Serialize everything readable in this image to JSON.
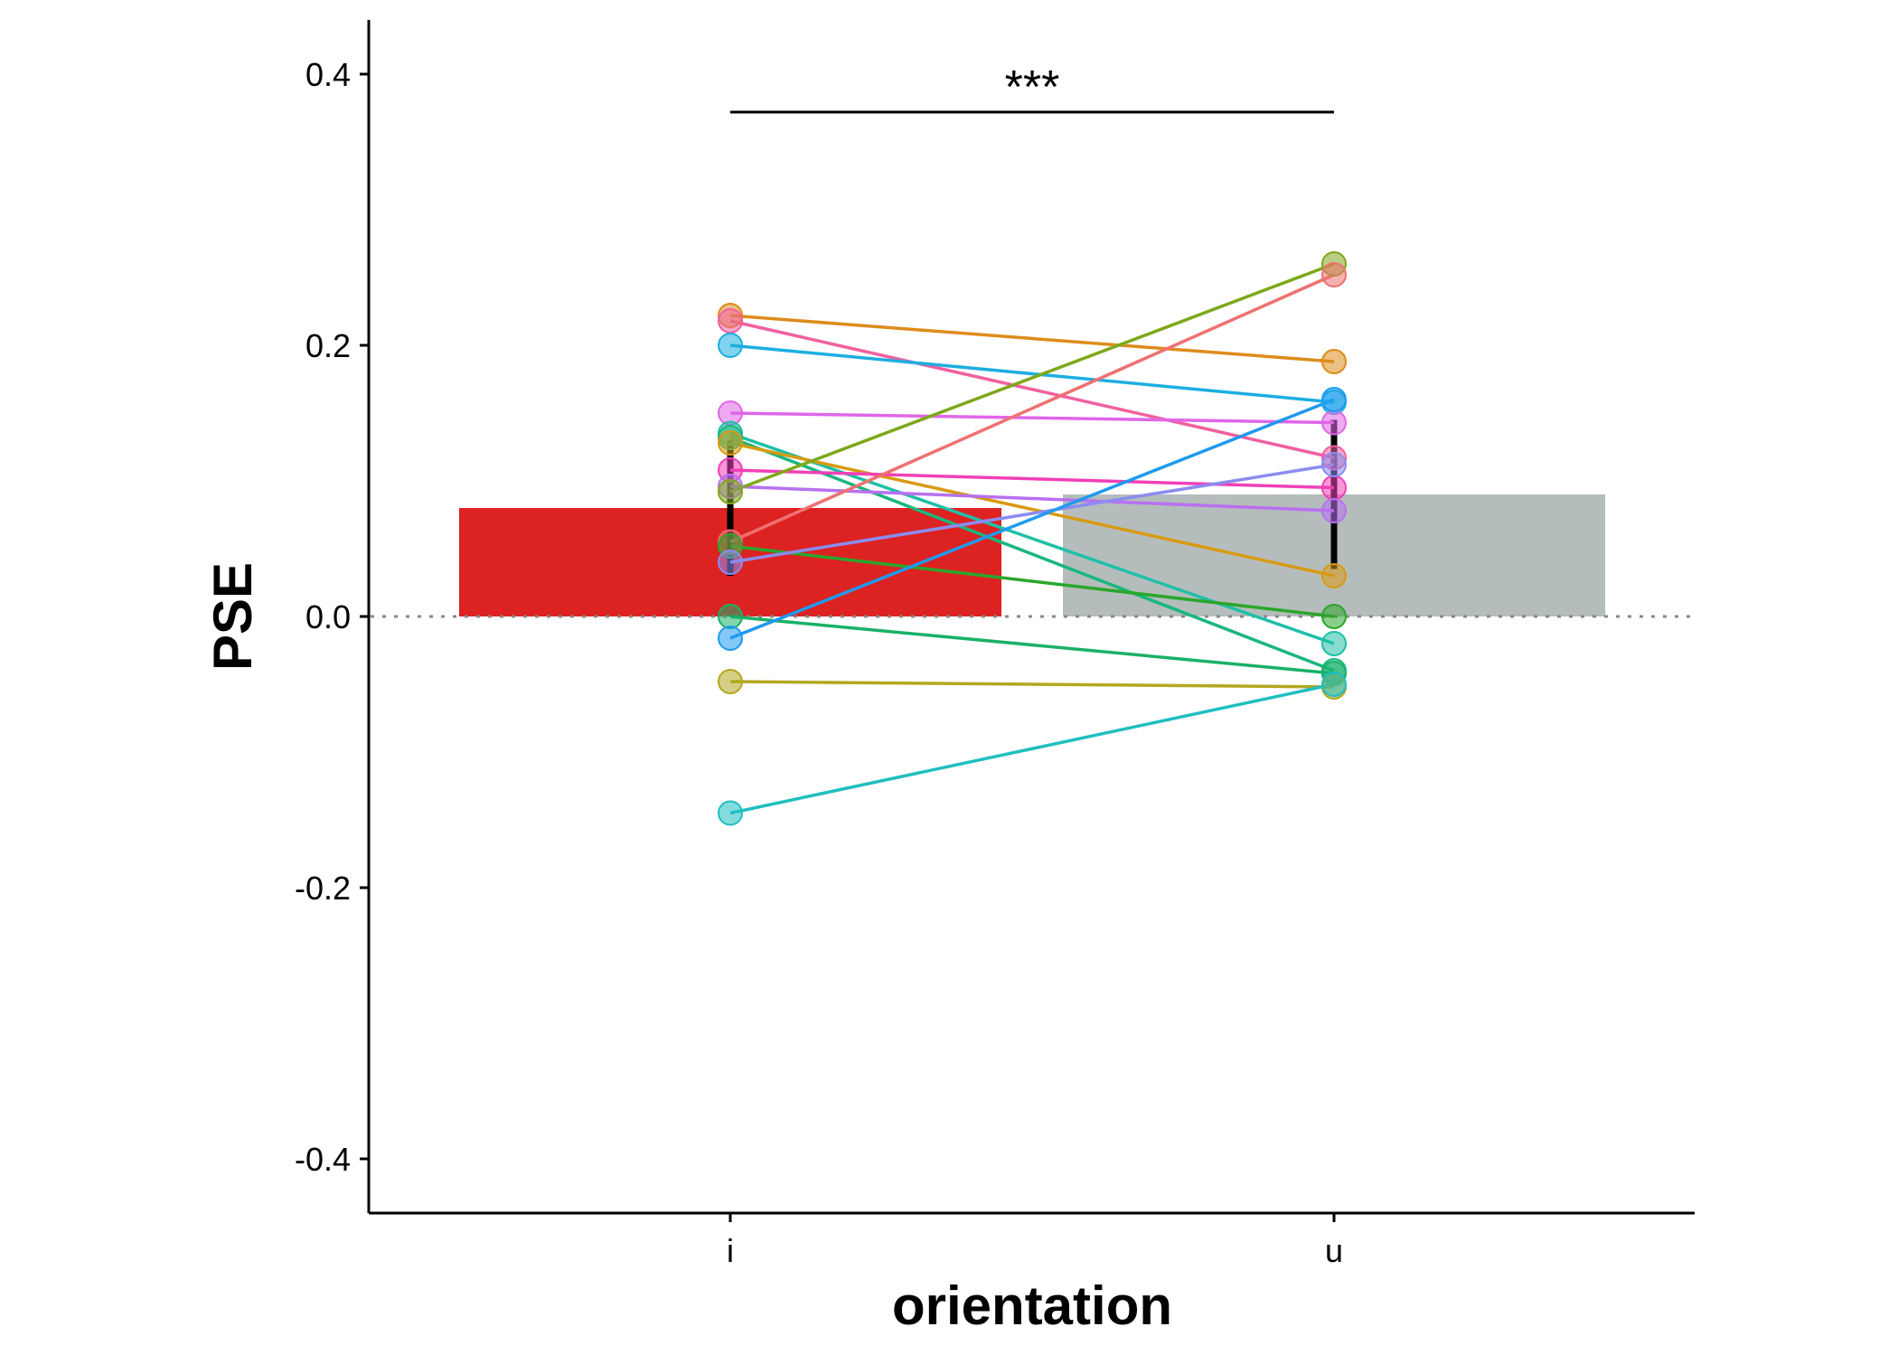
{
  "chart_data": {
    "type": "bar",
    "categories": [
      "i",
      "u"
    ],
    "bars": [
      {
        "category": "i",
        "value": 0.08,
        "color": "#DD2222",
        "error": [
          0.03,
          0.13
        ]
      },
      {
        "category": "u",
        "value": 0.09,
        "color": "#B5BDBC",
        "error": [
          0.035,
          0.145
        ]
      }
    ],
    "xlabel": "orientation",
    "ylabel": "PSE",
    "ylim": [
      -0.44,
      0.44
    ],
    "yticks": [
      0.4,
      0.2,
      0.0,
      -0.2,
      -0.4
    ],
    "ytick_labels": [
      "0.4",
      "0.2",
      "0.0",
      "-0.2",
      "-0.4"
    ],
    "reference_line": 0,
    "significance": {
      "label": "***",
      "y": 0.372,
      "from": "i",
      "to": "u"
    },
    "subjects": [
      {
        "i": 0.222,
        "u": 0.188,
        "color": "#DD8C1A"
      },
      {
        "i": 0.218,
        "u": 0.117,
        "color": "#F060A0"
      },
      {
        "i": 0.2,
        "u": 0.158,
        "color": "#1CAEE0"
      },
      {
        "i": 0.15,
        "u": 0.143,
        "color": "#E066E8"
      },
      {
        "i": 0.135,
        "u": -0.02,
        "color": "#20BFA8"
      },
      {
        "i": 0.132,
        "u": -0.04,
        "color": "#19B77E"
      },
      {
        "i": 0.128,
        "u": 0.03,
        "color": "#D89A12"
      },
      {
        "i": 0.108,
        "u": 0.095,
        "color": "#F040B8"
      },
      {
        "i": 0.096,
        "u": 0.078,
        "color": "#B870F0"
      },
      {
        "i": 0.092,
        "u": 0.26,
        "color": "#7EA81A"
      },
      {
        "i": 0.055,
        "u": 0.252,
        "color": "#F07070"
      },
      {
        "i": 0.052,
        "u": 0.0,
        "color": "#2BA62B"
      },
      {
        "i": 0.04,
        "u": 0.112,
        "color": "#8B8CF0"
      },
      {
        "i": 0.0,
        "u": -0.042,
        "color": "#1AB068"
      },
      {
        "i": -0.016,
        "u": 0.16,
        "color": "#1F9AF0"
      },
      {
        "i": -0.048,
        "u": -0.052,
        "color": "#B2A820"
      },
      {
        "i": -0.145,
        "u": -0.05,
        "color": "#20BEC0"
      }
    ]
  }
}
